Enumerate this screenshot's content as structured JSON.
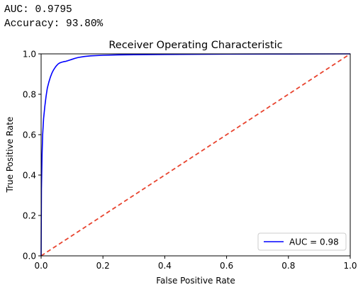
{
  "output": {
    "auc_line": "AUC: 0.9795",
    "accuracy_line": "Accuracy: 93.80%"
  },
  "chart_data": {
    "type": "line",
    "title": "Receiver Operating Characteristic",
    "xlabel": "False Positive Rate",
    "ylabel": "True Positive Rate",
    "xlim": [
      0,
      1
    ],
    "ylim": [
      0,
      1
    ],
    "xticks": [
      "0.0",
      "0.2",
      "0.4",
      "0.6",
      "0.8",
      "1.0"
    ],
    "yticks": [
      "0.0",
      "0.2",
      "0.4",
      "0.6",
      "0.8",
      "1.0"
    ],
    "grid": false,
    "legend": {
      "placement": "lower-right"
    },
    "series": [
      {
        "name": "AUC = 0.98",
        "color": "#0000ff",
        "style": "solid",
        "x": [
          0,
          0.001,
          0.003,
          0.005,
          0.008,
          0.012,
          0.016,
          0.02,
          0.025,
          0.03,
          0.035,
          0.04,
          0.045,
          0.05,
          0.055,
          0.06,
          0.065,
          0.07,
          0.075,
          0.08,
          0.09,
          0.1,
          0.11,
          0.12,
          0.14,
          0.16,
          0.2,
          0.25,
          0.3,
          0.4,
          0.5,
          0.6,
          0.8,
          1.0
        ],
        "y": [
          0,
          0.33,
          0.5,
          0.6,
          0.68,
          0.74,
          0.79,
          0.83,
          0.86,
          0.885,
          0.905,
          0.92,
          0.932,
          0.942,
          0.95,
          0.955,
          0.958,
          0.96,
          0.962,
          0.963,
          0.968,
          0.973,
          0.978,
          0.982,
          0.987,
          0.99,
          0.993,
          0.995,
          0.996,
          0.997,
          0.998,
          0.999,
          0.9995,
          1.0
        ]
      },
      {
        "color": "#e8442f",
        "style": "dashed",
        "x": [
          0,
          1
        ],
        "y": [
          0,
          1
        ]
      }
    ]
  }
}
